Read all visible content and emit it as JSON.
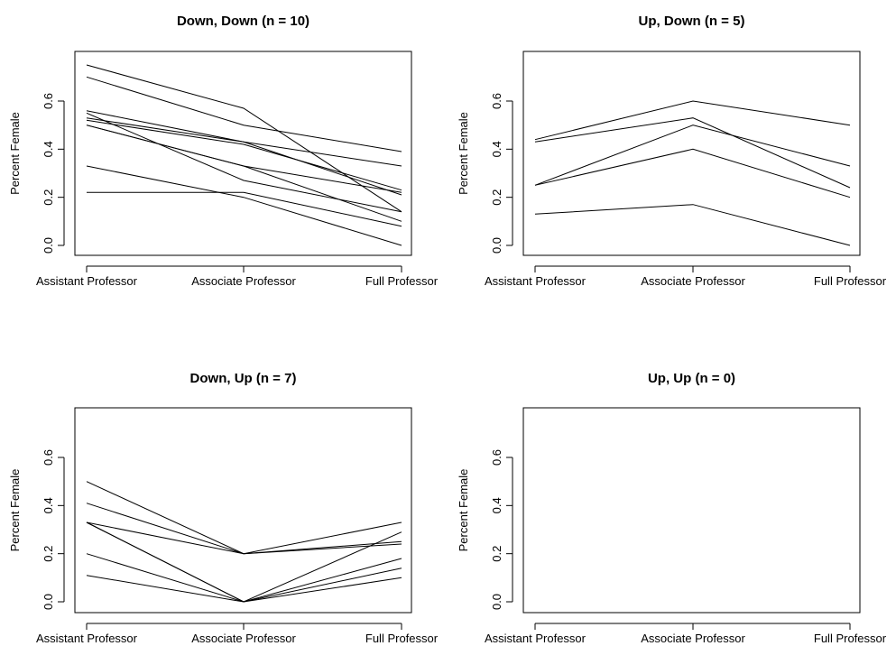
{
  "chart_data": [
    {
      "type": "line",
      "title": "Down, Down (n =  10)",
      "xlabel": "",
      "ylabel": "Percent Female",
      "categories": [
        "Assistant Professor",
        "Associate Professor",
        "Full Professor"
      ],
      "yticks": [
        "0.0",
        "0.2",
        "0.4",
        "0.6"
      ],
      "ylim": [
        0,
        0.75
      ],
      "grid": false,
      "series": [
        {
          "values": [
            0.75,
            0.57,
            0.14
          ]
        },
        {
          "values": [
            0.7,
            0.5,
            0.39
          ]
        },
        {
          "values": [
            0.56,
            0.43,
            0.33
          ]
        },
        {
          "values": [
            0.55,
            0.27,
            0.14
          ]
        },
        {
          "values": [
            0.53,
            0.43,
            0.21
          ]
        },
        {
          "values": [
            0.52,
            0.42,
            0.23
          ]
        },
        {
          "values": [
            0.5,
            0.33,
            0.22
          ]
        },
        {
          "values": [
            0.5,
            0.33,
            0.1
          ]
        },
        {
          "values": [
            0.33,
            0.2,
            0.0
          ]
        },
        {
          "values": [
            0.22,
            0.22,
            0.08
          ]
        }
      ]
    },
    {
      "type": "line",
      "title": "Up, Down (n = 5)",
      "xlabel": "",
      "ylabel": "Percent Female",
      "categories": [
        "Assistant Professor",
        "Associate Professor",
        "Full Professor"
      ],
      "yticks": [
        "0.0",
        "0.2",
        "0.4",
        "0.6"
      ],
      "ylim": [
        0,
        0.75
      ],
      "grid": false,
      "series": [
        {
          "values": [
            0.44,
            0.6,
            0.5
          ]
        },
        {
          "values": [
            0.43,
            0.53,
            0.24
          ]
        },
        {
          "values": [
            0.25,
            0.5,
            0.33
          ]
        },
        {
          "values": [
            0.25,
            0.4,
            0.2
          ]
        },
        {
          "values": [
            0.13,
            0.17,
            0.0
          ]
        }
      ]
    },
    {
      "type": "line",
      "title": "Down, Up (n = 7)",
      "xlabel": "",
      "ylabel": "Percent Female",
      "categories": [
        "Assistant Professor",
        "Associate Professor",
        "Full Professor"
      ],
      "yticks": [
        "0.0",
        "0.2",
        "0.4",
        "0.6"
      ],
      "ylim": [
        0,
        0.75
      ],
      "grid": false,
      "series": [
        {
          "values": [
            0.5,
            0.2,
            0.33
          ]
        },
        {
          "values": [
            0.41,
            0.2,
            0.24
          ]
        },
        {
          "values": [
            0.33,
            0.2,
            0.25
          ]
        },
        {
          "values": [
            0.33,
            0.0,
            0.29
          ]
        },
        {
          "values": [
            0.2,
            0.0,
            0.18
          ]
        },
        {
          "values": [
            0.11,
            0.0,
            0.14
          ]
        },
        {
          "values": [
            0.33,
            0.0,
            0.1
          ]
        }
      ]
    },
    {
      "type": "line",
      "title": "Up, Up (n = 0)",
      "xlabel": "",
      "ylabel": "Percent Female",
      "categories": [
        "Assistant Professor",
        "Associate Professor",
        "Full Professor"
      ],
      "yticks": [
        "0.0",
        "0.2",
        "0.4",
        "0.6"
      ],
      "ylim": [
        0,
        0.75
      ],
      "grid": false,
      "series": []
    }
  ]
}
